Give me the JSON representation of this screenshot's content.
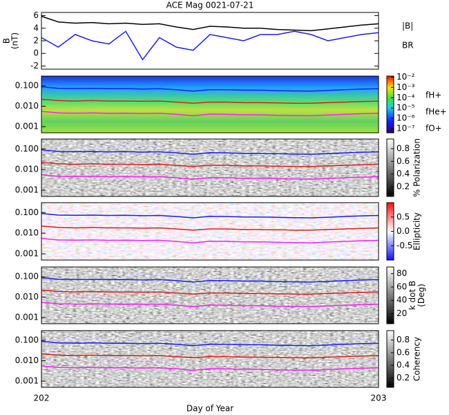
{
  "chart_data": [
    {
      "type": "line",
      "title": "ACE Mag 0021-07-21",
      "ylabel": [
        "B",
        "(nT)"
      ],
      "x": [
        202,
        202.05,
        202.1,
        202.15,
        202.2,
        202.25,
        202.3,
        202.35,
        202.4,
        202.45,
        202.5,
        202.55,
        202.6,
        202.65,
        202.7,
        202.75,
        202.8,
        202.85,
        202.9,
        202.95,
        203
      ],
      "series": [
        {
          "name": "|B|",
          "color": "#000000",
          "values": [
            5.9,
            5.0,
            4.8,
            4.9,
            4.7,
            4.8,
            4.6,
            4.7,
            4.2,
            3.8,
            4.3,
            4.2,
            4.0,
            4.0,
            3.8,
            3.7,
            3.6,
            3.9,
            4.2,
            4.5,
            4.7
          ]
        },
        {
          "name": "BR",
          "color": "#1a1aff",
          "values": [
            2.5,
            1.0,
            3.0,
            2.0,
            1.5,
            3.5,
            -1.0,
            2.5,
            1.0,
            0.5,
            3.0,
            2.5,
            2.0,
            3.0,
            3.0,
            3.5,
            3.0,
            2.0,
            2.5,
            3.0,
            3.3
          ]
        }
      ],
      "xlim": [
        202,
        203
      ],
      "ylim": [
        -2.5,
        6.5
      ],
      "yticks": [
        -2,
        0,
        2,
        4,
        6
      ]
    },
    {
      "type": "spectrogram",
      "xlabel": "Day of Year",
      "log_y": true,
      "x": [
        202,
        202.05,
        202.1,
        202.15,
        202.2,
        202.25,
        202.3,
        202.35,
        202.4,
        202.45,
        202.5,
        202.55,
        202.6,
        202.65,
        202.7,
        202.75,
        202.8,
        202.85,
        202.9,
        202.95,
        203
      ],
      "xlim": [
        202,
        203
      ],
      "xticks": [
        202,
        203
      ],
      "ylim": [
        0.0005,
        0.3
      ],
      "yticks": [
        {
          "value": 0.1,
          "label": "0.100"
        },
        {
          "value": 0.01,
          "label": "0.010"
        },
        0.001
      ],
      "series": [
        {
          "name": "fH+",
          "color": "#1a1aff",
          "values": [
            0.09,
            0.075,
            0.073,
            0.075,
            0.072,
            0.073,
            0.07,
            0.072,
            0.064,
            0.055,
            0.065,
            0.064,
            0.061,
            0.061,
            0.058,
            0.056,
            0.055,
            0.059,
            0.064,
            0.069,
            0.072
          ]
        },
        {
          "name": "fHe+",
          "color": "#e61a1a",
          "values": [
            0.022,
            0.019,
            0.018,
            0.019,
            0.018,
            0.018,
            0.0175,
            0.018,
            0.016,
            0.014,
            0.016,
            0.016,
            0.015,
            0.015,
            0.0145,
            0.014,
            0.014,
            0.015,
            0.016,
            0.017,
            0.018
          ]
        },
        {
          "name": "fO+",
          "color": "#ff1aff",
          "values": [
            0.0056,
            0.0047,
            0.0046,
            0.0047,
            0.0045,
            0.0046,
            0.0044,
            0.0045,
            0.004,
            0.0034,
            0.0041,
            0.004,
            0.0038,
            0.0038,
            0.0036,
            0.0035,
            0.0034,
            0.0037,
            0.004,
            0.0043,
            0.0045
          ]
        }
      ],
      "panels": [
        {
          "clim": [
            -7.4,
            -1.9
          ],
          "cticks": [
            {
              "value": -2,
              "label": "10⁻²"
            },
            {
              "value": -3,
              "label": "10⁻³"
            },
            {
              "value": -4,
              "label": "10⁻⁴"
            },
            {
              "value": -5,
              "label": "10⁻⁵"
            },
            {
              "value": -6,
              "label": "10⁻⁶"
            },
            {
              "value": -7,
              "label": "10⁻⁷"
            }
          ]
        },
        {
          "clim": [
            0.05,
            0.95
          ],
          "cticks": [
            0.2,
            0.4,
            0.6,
            0.8
          ],
          "colorbar_label": [
            "% Polarization"
          ]
        },
        {
          "clim": [
            -1,
            1
          ],
          "cticks": [
            -0.5,
            {
              "value": 0,
              "label": "0.0"
            },
            0.5
          ],
          "colorbar_label": [
            "Ellipticity"
          ]
        },
        {
          "clim": [
            5,
            90
          ],
          "cticks": [
            20,
            40,
            60,
            80
          ],
          "colorbar_label": [
            "k dot B",
            "(Deg)"
          ]
        },
        {
          "clim": [
            0.05,
            0.95
          ],
          "cticks": [
            0.2,
            0.4,
            0.6,
            0.8
          ],
          "colorbar_label": [
            "Coherency"
          ]
        }
      ]
    }
  ]
}
